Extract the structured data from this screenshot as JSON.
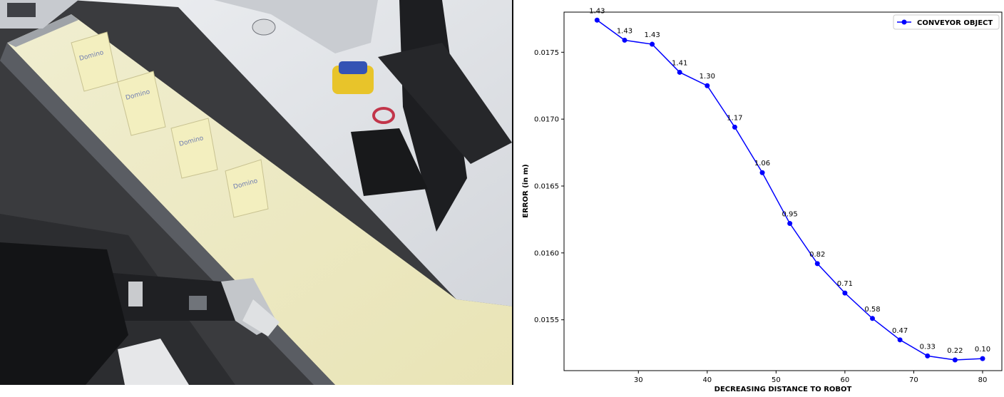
{
  "photo": {
    "carton_text": "Domino",
    "colors": {
      "floor": "#3c3c3e",
      "desk": "#e2e5ea",
      "conveyor": "#efecc6",
      "carton": "#f1eebc",
      "monitor": "#1e1f22"
    }
  },
  "chart_data": {
    "type": "line",
    "title": "",
    "xlabel": "DECREASING DISTANCE TO ROBOT",
    "ylabel": "ERROR (in m)",
    "xlim": [
      19.2,
      82.8
    ],
    "ylim": [
      0.01512,
      0.0178
    ],
    "x_ticks": [
      30,
      40,
      50,
      60,
      70,
      80
    ],
    "y_ticks": [
      0.0155,
      0.016,
      0.0165,
      0.017,
      0.0175
    ],
    "y_tick_labels": [
      "0.0155",
      "0.0160",
      "0.0165",
      "0.0170",
      "0.0175"
    ],
    "grid": false,
    "legend_position": "top-right",
    "series": [
      {
        "name": "CONVEYOR OBJECT",
        "color": "#0000ff",
        "marker": "circle",
        "x": [
          24,
          28,
          32,
          36,
          40,
          44,
          48,
          52,
          56,
          60,
          64,
          68,
          72,
          76,
          80
        ],
        "y": [
          0.01774,
          0.01759,
          0.01756,
          0.01735,
          0.01725,
          0.01694,
          0.0166,
          0.01622,
          0.01592,
          0.0157,
          0.01551,
          0.01535,
          0.01523,
          0.0152,
          0.01521
        ],
        "labels": [
          "1.43",
          "1.43",
          "1.43",
          "1.41",
          "1.30",
          "1.17",
          "1.06",
          "0.95",
          "0.82",
          "0.71",
          "0.58",
          "0.47",
          "0.33",
          "0.22",
          "0.10"
        ]
      }
    ]
  }
}
